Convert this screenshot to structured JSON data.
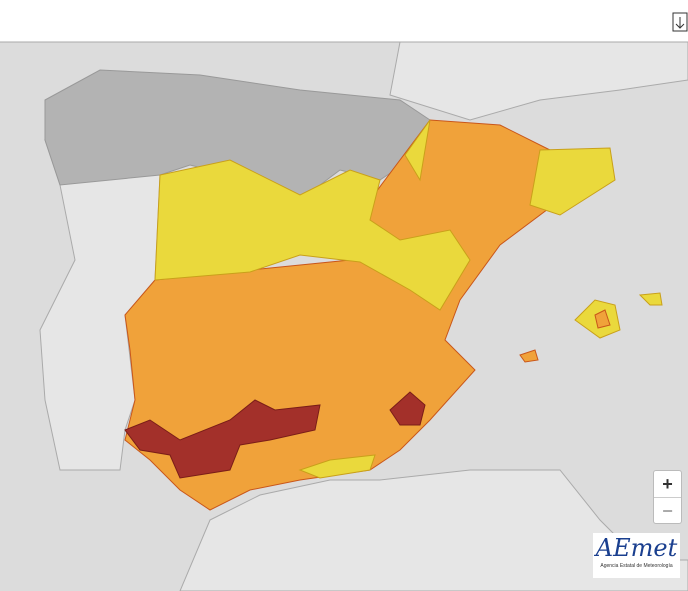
{
  "controls": {
    "zoom_in": "+",
    "zoom_out": "−"
  },
  "logo": {
    "name": "AEmet",
    "subtitle": "Agencia Estatal de Meteorología"
  }
}
